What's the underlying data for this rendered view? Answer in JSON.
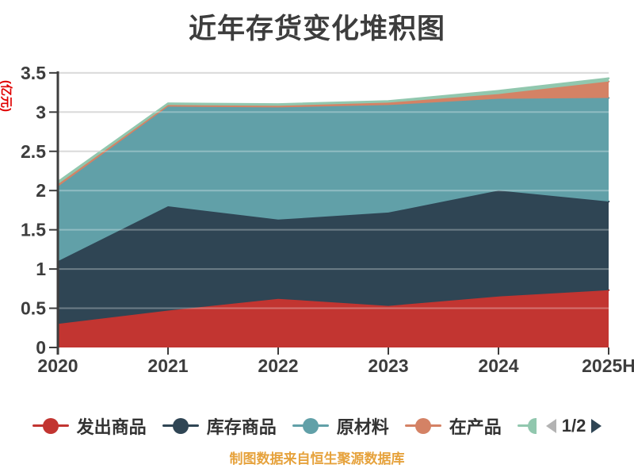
{
  "chart_data": {
    "type": "area",
    "stacked": true,
    "title": "近年存货变化堆积图",
    "ylabel": "(亿元)",
    "categories": [
      "2020",
      "2021",
      "2022",
      "2023",
      "2024",
      "2025H"
    ],
    "ylim": [
      0,
      3.5
    ],
    "y_tick_labels": [
      "0",
      "0.5",
      "1",
      "1.5",
      "2",
      "2.5",
      "3",
      "3.5"
    ],
    "grid": true,
    "series": [
      {
        "name": "发出商品",
        "color": "#c23531",
        "values": [
          0.3,
          0.47,
          0.62,
          0.53,
          0.65,
          0.73
        ]
      },
      {
        "name": "库存商品",
        "color": "#2f4554",
        "values": [
          0.8,
          1.33,
          1.01,
          1.19,
          1.35,
          1.13
        ]
      },
      {
        "name": "原材料",
        "color": "#61a0a8",
        "values": [
          0.95,
          1.27,
          1.43,
          1.37,
          1.17,
          1.32
        ]
      },
      {
        "name": "在产品",
        "color": "#d48265",
        "values": [
          0.03,
          0.02,
          0.02,
          0.03,
          0.06,
          0.21
        ]
      },
      {
        "name": "",
        "color": "#91c7ae",
        "values": [
          0.03,
          0.02,
          0.02,
          0.02,
          0.04,
          0.04
        ]
      }
    ],
    "legend": {
      "position": "bottom",
      "visible_labels": [
        "发出商品",
        "库存商品",
        "原材料",
        "在产品"
      ],
      "pager": {
        "label": "1/2",
        "prev_enabled": false,
        "next_enabled": true
      }
    },
    "source_note": "制图数据来自恒生聚源数据库",
    "colors": {
      "title": "#3d3d3d",
      "axis_text": "#3d3d3d",
      "axis_line": "#3d3d3d",
      "grid": "#cccccc",
      "unit_label": "#e00000",
      "source_note": "#e6a23c",
      "legend_text": "#333333",
      "pager_prev": "#b3b3b3",
      "pager_next": "#2f4554"
    }
  }
}
